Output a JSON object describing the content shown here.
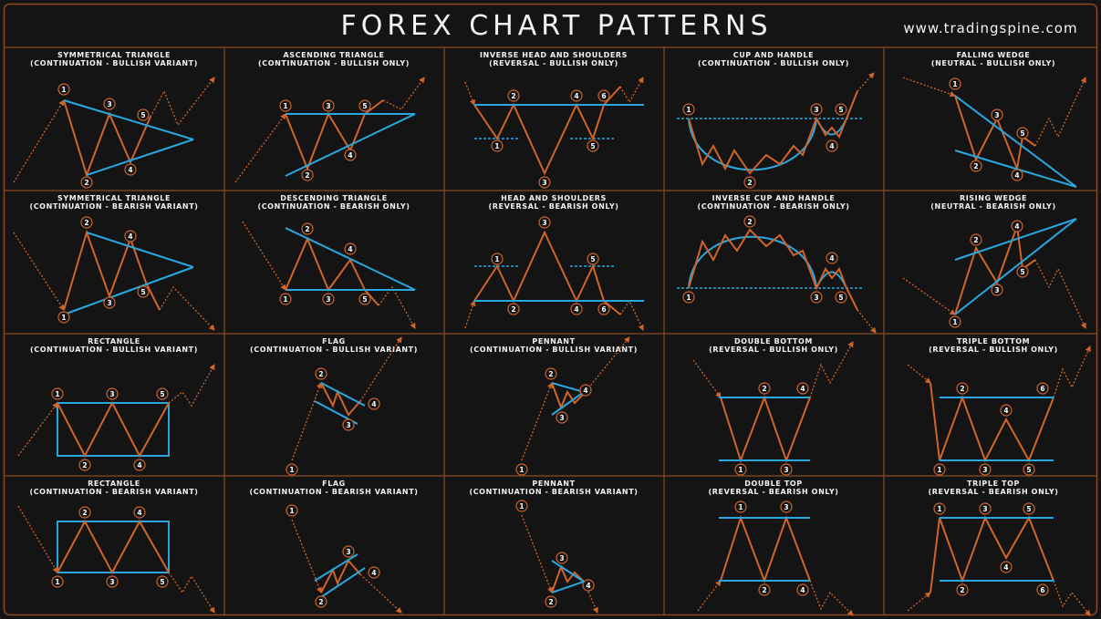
{
  "header": {
    "title": "FOREX CHART PATTERNS",
    "website": "www.tradingspine.com"
  },
  "patterns": [
    {
      "name": "SYMMETRICAL TRIANGLE",
      "subtitle": "(CONTINUATION - BULLISH VARIANT)",
      "labels": [
        1,
        2,
        3,
        4,
        5
      ]
    },
    {
      "name": "ASCENDING TRIANGLE",
      "subtitle": "(CONTINUATION - BULLISH ONLY)",
      "labels": [
        1,
        2,
        3,
        4,
        5
      ]
    },
    {
      "name": "INVERSE HEAD AND SHOULDERS",
      "subtitle": "(REVERSAL - BULLISH ONLY)",
      "labels": [
        1,
        2,
        3,
        4,
        5,
        6
      ]
    },
    {
      "name": "CUP AND HANDLE",
      "subtitle": "(CONTINUATION - BULLISH ONLY)",
      "labels": [
        1,
        2,
        3,
        4,
        5
      ]
    },
    {
      "name": "FALLING WEDGE",
      "subtitle": "(NEUTRAL - BULLISH ONLY)",
      "labels": [
        1,
        2,
        3,
        4,
        5
      ]
    },
    {
      "name": "SYMMETRICAL TRIANGLE",
      "subtitle": "(CONTINUATION - BEARISH VARIANT)",
      "labels": [
        1,
        2,
        3,
        4,
        5
      ]
    },
    {
      "name": "DESCENDING TRIANGLE",
      "subtitle": "(CONTINUATION - BEARISH ONLY)",
      "labels": [
        1,
        2,
        3,
        4,
        5
      ]
    },
    {
      "name": "HEAD AND SHOULDERS",
      "subtitle": "(REVERSAL - BEARISH ONLY)",
      "labels": [
        1,
        2,
        3,
        4,
        5,
        6
      ]
    },
    {
      "name": "INVERSE CUP AND HANDLE",
      "subtitle": "(CONTINUATION - BEARISH ONLY)",
      "labels": [
        1,
        2,
        3,
        4,
        5
      ]
    },
    {
      "name": "RISING WEDGE",
      "subtitle": "(NEUTRAL - BEARISH ONLY)",
      "labels": [
        1,
        2,
        3,
        4,
        5
      ]
    },
    {
      "name": "RECTANGLE",
      "subtitle": "(CONTINUATION - BULLISH VARIANT)",
      "labels": [
        1,
        2,
        3,
        4,
        5
      ]
    },
    {
      "name": "FLAG",
      "subtitle": "(CONTINUATION - BULLISH VARIANT)",
      "labels": [
        1,
        2,
        3,
        4
      ]
    },
    {
      "name": "PENNANT",
      "subtitle": "(CONTINUATION - BULLISH VARIANT)",
      "labels": [
        1,
        2,
        3,
        4
      ]
    },
    {
      "name": "DOUBLE BOTTOM",
      "subtitle": "(REVERSAL - BULLISH ONLY)",
      "labels": [
        1,
        2,
        3,
        4
      ]
    },
    {
      "name": "TRIPLE BOTTOM",
      "subtitle": "(REVERSAL - BULLISH ONLY)",
      "labels": [
        1,
        2,
        3,
        4,
        5,
        6
      ]
    },
    {
      "name": "RECTANGLE",
      "subtitle": "(CONTINUATION - BEARISH VARIANT)",
      "labels": [
        1,
        2,
        3,
        4,
        5
      ]
    },
    {
      "name": "FLAG",
      "subtitle": "(CONTINUATION - BEARISH VARIANT)",
      "labels": [
        1,
        2,
        3,
        4
      ]
    },
    {
      "name": "PENNANT",
      "subtitle": "(CONTINUATION - BEARISH VARIANT)",
      "labels": [
        1,
        2,
        3,
        4
      ]
    },
    {
      "name": "DOUBLE TOP",
      "subtitle": "(REVERSAL - BEARISH ONLY)",
      "labels": [
        1,
        2,
        3,
        4
      ]
    },
    {
      "name": "TRIPLE TOP",
      "subtitle": "(REVERSAL - BEARISH ONLY)",
      "labels": [
        1,
        2,
        3,
        4,
        5,
        6
      ]
    }
  ]
}
